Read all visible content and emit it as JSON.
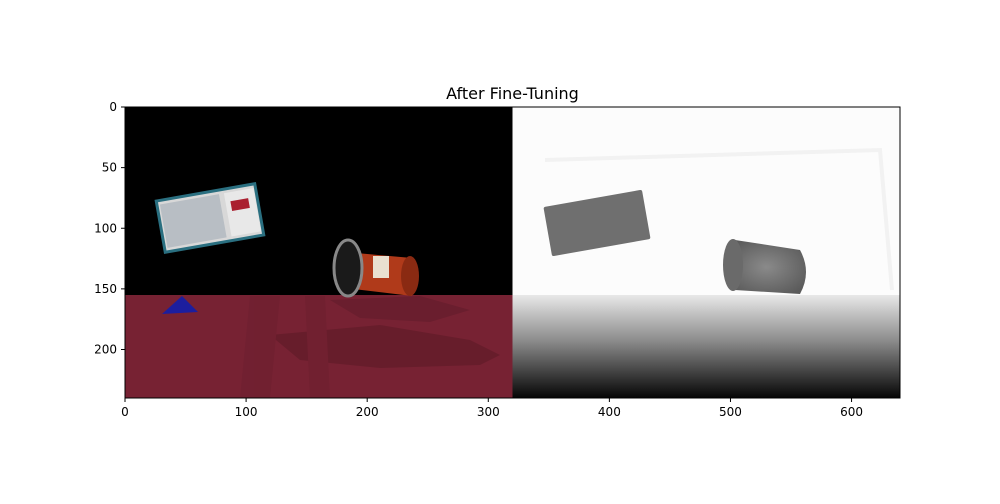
{
  "chart_data": {
    "type": "image",
    "title": "After Fine-Tuning",
    "xlabel": "",
    "ylabel": "",
    "image_width": 640,
    "image_height": 240,
    "xlim": [
      0,
      640
    ],
    "ylim": [
      240,
      0
    ],
    "xticks": [
      0,
      100,
      200,
      300,
      400,
      500,
      600
    ],
    "yticks": [
      0,
      50,
      100,
      150,
      200
    ],
    "panels": [
      {
        "name": "segmentation-overlay",
        "x_range": [
          0,
          320
        ]
      },
      {
        "name": "depth-map",
        "x_range": [
          320,
          640
        ]
      }
    ],
    "table_region_y_start": 155,
    "colors": {
      "background_left": "#000000",
      "table_overlay": "#772233",
      "background_right": "#ffffff",
      "object_depth": "#707070"
    }
  }
}
